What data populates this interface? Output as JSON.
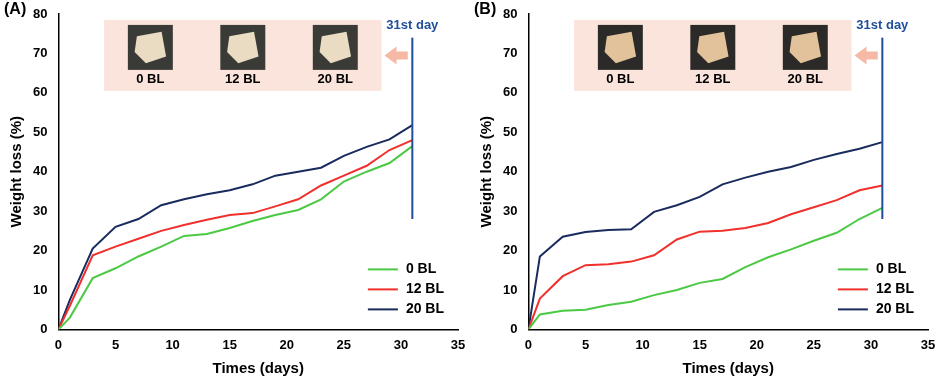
{
  "chart_data": [
    {
      "type": "line",
      "title": "(A)",
      "x_label": "Times (days)",
      "y_label": "Weight loss (%)",
      "x": [
        0,
        1,
        3,
        5,
        7,
        9,
        11,
        13,
        15,
        17,
        19,
        21,
        23,
        25,
        27,
        29,
        31
      ],
      "series": [
        {
          "name": "0 BL",
          "color": "#4cc944",
          "values": [
            0,
            3,
            13,
            15.5,
            18.5,
            21,
            23.7,
            24.2,
            25.7,
            27.5,
            29,
            30.3,
            33,
            37.5,
            40,
            42.2,
            46.5
          ]
        },
        {
          "name": "12 BL",
          "color": "#f0302c",
          "values": [
            0,
            6,
            18.8,
            21,
            23,
            25,
            26.5,
            27.8,
            29,
            29.5,
            31.2,
            33,
            36.5,
            39,
            41.5,
            45.5,
            48
          ]
        },
        {
          "name": "20 BL",
          "color": "#1a2b5e",
          "values": [
            0,
            7.5,
            20.5,
            26,
            28,
            31.5,
            33,
            34.3,
            35.3,
            36.8,
            39,
            40,
            41,
            44,
            46.3,
            48.2,
            51.8
          ]
        }
      ],
      "xlim": [
        0,
        35
      ],
      "xticks": [
        0,
        5,
        10,
        15,
        20,
        25,
        30,
        35
      ],
      "ylim": [
        0,
        80
      ],
      "yticks": [
        0,
        10,
        20,
        30,
        40,
        50,
        60,
        70,
        80
      ],
      "grid": false,
      "legend": "lower right",
      "annotations": [
        {
          "text": "31st day",
          "x": 31
        }
      ],
      "inset_labels": [
        "0 BL",
        "12 BL",
        "20 BL"
      ]
    },
    {
      "type": "line",
      "title": "(B)",
      "x_label": "Times (days)",
      "y_label": "Weight loss (%)",
      "x": [
        0,
        1,
        3,
        5,
        7,
        9,
        11,
        13,
        15,
        17,
        19,
        21,
        23,
        25,
        27,
        29,
        31
      ],
      "series": [
        {
          "name": "0 BL",
          "color": "#4cc944",
          "values": [
            0,
            3.8,
            4.7,
            5,
            6.2,
            7,
            8.7,
            10,
            11.8,
            12.8,
            15.8,
            18.3,
            20.3,
            22.5,
            24.5,
            28,
            30.8
          ]
        },
        {
          "name": "12 BL",
          "color": "#f0302c",
          "values": [
            0,
            7.8,
            13.5,
            16.3,
            16.5,
            17.2,
            18.8,
            22.8,
            24.8,
            25,
            25.7,
            27,
            29.2,
            31,
            32.8,
            35.3,
            36.5
          ]
        },
        {
          "name": "20 BL",
          "color": "#1a2b5e",
          "values": [
            0,
            18.5,
            23.5,
            24.7,
            25.2,
            25.4,
            29.8,
            31.5,
            33.6,
            36.8,
            38.5,
            40,
            41.2,
            43,
            44.5,
            45.8,
            47.5
          ]
        }
      ],
      "xlim": [
        0,
        35
      ],
      "xticks": [
        0,
        5,
        10,
        15,
        20,
        25,
        30,
        35
      ],
      "ylim": [
        0,
        80
      ],
      "yticks": [
        0,
        10,
        20,
        30,
        40,
        50,
        60,
        70,
        80
      ],
      "grid": false,
      "legend": "lower right",
      "annotations": [
        {
          "text": "31st day",
          "x": 31
        }
      ],
      "inset_labels": [
        "0 BL",
        "12 BL",
        "20 BL"
      ]
    }
  ]
}
